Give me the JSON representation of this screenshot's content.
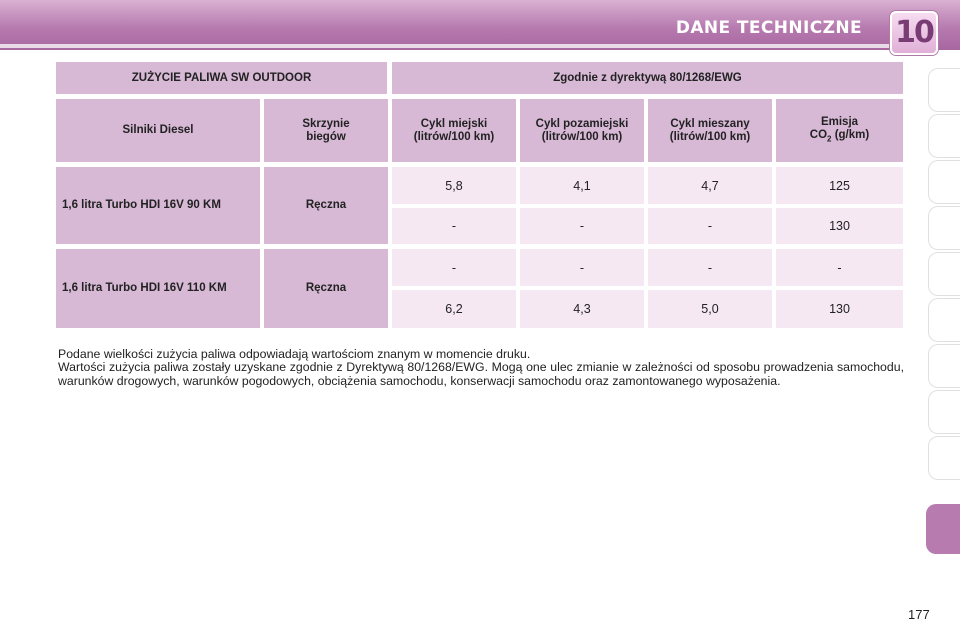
{
  "header": {
    "title": "DANE TECHNICZNE",
    "chapter": "10"
  },
  "table": {
    "title_left": "ZUŻYCIE PALIWA SW OUTDOOR",
    "title_right": "Zgodnie z dyrektywą 80/1268/EWG",
    "col_engines": "Silniki Diesel",
    "col_gearbox": "Skrzynie biegów",
    "col_city": "Cykl miejski (litrów/100 km)",
    "col_extra": "Cykl pozamiejski (litrów/100 km)",
    "col_mixed": "Cykl mieszany (litrów/100 km)",
    "col_emission_a": "Emisja",
    "col_emission_b": "CO",
    "col_emission_sub": "2",
    "col_emission_c": " (g/km)",
    "engine1": "1,6 litra Turbo HDI 16V 90 KM",
    "gear1": "Ręczna",
    "engine2": "1,6 litra Turbo HDI 16V 110 KM",
    "gear2": "Ręczna",
    "rows": [
      [
        "5,8",
        "4,1",
        "4,7",
        "125"
      ],
      [
        "-",
        "-",
        "-",
        "130"
      ],
      [
        "-",
        "-",
        "-",
        "-"
      ],
      [
        "6,2",
        "4,3",
        "5,0",
        "130"
      ]
    ]
  },
  "notes": {
    "line1": "Podane wielkości zużycia paliwa odpowiadają wartościom znanym w momencie druku.",
    "line2": "Wartości zużycia paliwa zostały uzyskane zgodnie z Dyrektywą 80/1268/EWG. Mogą one ulec zmianie w zależności od sposobu prowadzenia samochodu, warunków drogowych, warunków pogodowych, obciążenia samochodu, konserwacji samochodu oraz zamontowanego wyposażenia."
  },
  "page_number": "177",
  "colors": {
    "header_accent": "#b77bb0",
    "header_cell": "#d7b8d5",
    "body_cell": "#f6e8f3"
  }
}
